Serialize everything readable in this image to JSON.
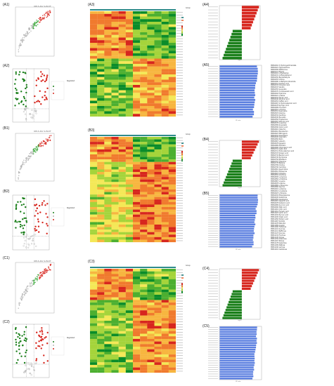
{
  "panel_labels": [
    "(A1)",
    "(A2)",
    "(A3)",
    "(A4)",
    "(A5)",
    "(B1)",
    "(B2)",
    "(B3)",
    "(B4)",
    "(B5)",
    "(C1)",
    "(C2)",
    "(C3)",
    "(C4)",
    "(C5)"
  ],
  "splot_title": "OPLS-DA S-PLOT",
  "heatmap_legend": {
    "title": "Group",
    "items": [
      "Qxm_prime",
      "Qxm_prime"
    ]
  },
  "colors": {
    "up": "#d7261e",
    "down": "#1a7f1a",
    "vip_bar": "#5b7fe0",
    "grey": "#b5b5b5",
    "teal": "#2e8b8b"
  },
  "axes": {
    "vip": "VIP value",
    "fc": "Log2FC"
  },
  "volcano_legend": [
    "Regulated",
    "down",
    "insignificant",
    "up"
  ],
  "metabolites": [
    "MWS0010 3-Hydroxyanthranilate",
    "MWS0021 Hypoxanthine",
    "MWS0099 Methionine",
    "MWS0113 Phenol",
    "MWS0201 L-Tryptophan",
    "MWS0231 2-Phenylethanol",
    "MWS0250 Benzaldehyde",
    "MWS0255 Uridine",
    "MWS0280 1-Methylnicotinamide",
    "MWS0312 Gentisic acid",
    "MWS0333 Cinnamic acid",
    "MWS0347 Vanillin",
    "MWS0355 Isovanillin",
    "MWS0370 3-Indoleacetic acid",
    "MWS0404 Tyramine",
    "MWS0421 L-Valine",
    "MWS0432 Ferulic acid",
    "MWS0440 Nicotinic acid",
    "MWS0452 Caffeic acid",
    "MWS0467 4-Hydroxybenzoic acid",
    "MWS0478 Syringic acid",
    "MWS0489 Coumarin",
    "MWS0501 L-Proline",
    "MWS0512 Guanosine",
    "MWS0523 Adenine",
    "MWS0534 Xanthine",
    "MWS0545 Esculetin",
    "MWS0556 Tryptamine",
    "MWS0567 Salicylic acid",
    "MWS0578 L-Leucine",
    "MWS0589 Scopoletin",
    "MWS0590 Quinic acid",
    "MWS0601 Catechin",
    "MWS0612 Epicatechin",
    "MWS0623 Naringenin",
    "MWS0634 Kaempferol",
    "MWS0645 Quercetin",
    "MWS0656 Rutin",
    "MWS0667 Luteolin",
    "MWS0678 Apigenin",
    "MWS0689 Phloretin",
    "MWS0690 Chlorogenic acid",
    "MWS0701 Gallic acid",
    "MWS0712 Protocatechuic acid",
    "MWS0723 Sinapic acid",
    "MWS0734 Benzoic acid",
    "MWS0745 Pyridoxine",
    "MWS0756 Riboflavin",
    "MWS0767 Thiamine",
    "MWS0778 Betaine",
    "MWS0789 Choline",
    "MWS0790 Carnitine",
    "MWS0801 Spermidine",
    "MWS0812 Putrescine",
    "MWS0823 Citrulline",
    "MWS0834 Ornithine",
    "MWS0845 L-Arginine",
    "MWS0856 L-Histidine",
    "MWS0867 L-Lysine",
    "MWS0878 L-Serine",
    "MWS0889 L-Threonine",
    "MWS0890 Glycine",
    "MWS0901 L-Alanine",
    "MWS0912 L-Cysteine",
    "MWS0923 L-Tyrosine",
    "MWS0934 Phenylalanine",
    "MWS0945 Glutamine",
    "MWS0956 Asparagine",
    "MWS0967 Aspartic acid",
    "MWS0978 Glutamic acid",
    "MWS0989 Succinic acid",
    "MWS0990 Malic acid",
    "MWS1001 Citric acid",
    "MWS1012 Fumaric acid",
    "MWS1023 Lactic acid",
    "MWS1034 Pyruvic acid",
    "MWS1045 Oxalic acid",
    "MWS1056 Tartaric acid",
    "MWS1067 Sorbitol",
    "MWS1078 Mannitol",
    "MWS1089 Inositol",
    "MWS1090 Trehalose",
    "MWS1101 Sucrose",
    "MWS1112 Raffinose",
    "MWS1123 Glucose",
    "MWS1134 Fructose",
    "MWS1145 Xylose",
    "MWS1156 Arabinose",
    "MWS1167 Ribose",
    "MWS1178 Galactose",
    "MWS1189 Maltose",
    "MWS1190 Lactose",
    "MWS1201 Cellobiose"
  ]
}
